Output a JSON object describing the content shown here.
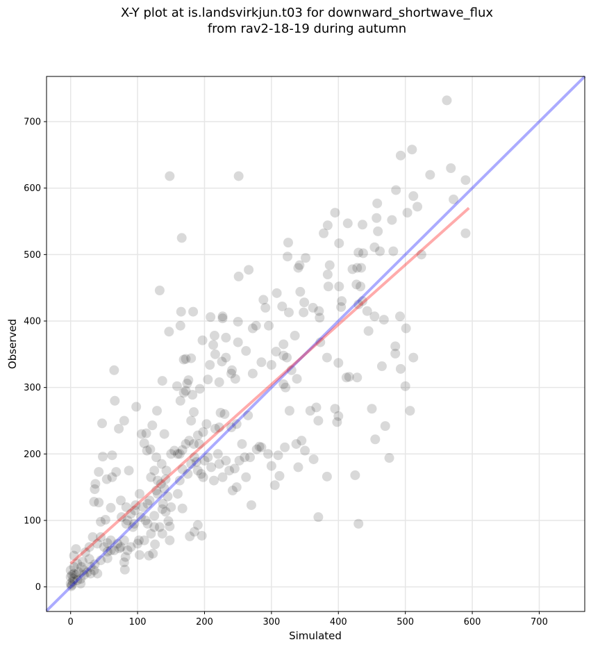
{
  "chart_data": {
    "type": "scatter",
    "title_line1": "X-Y plot at is.landsvirkjun.t03 for downward_shortwave_flux",
    "title_line2": "from rav2-18-19 during autumn",
    "xlabel": "Simulated",
    "ylabel": "Observed",
    "xlim": [
      -36,
      768
    ],
    "ylim": [
      -37,
      768
    ],
    "xticks": [
      "0",
      "100",
      "200",
      "300",
      "400",
      "500",
      "600",
      "700"
    ],
    "yticks": [
      "0",
      "100",
      "200",
      "300",
      "400",
      "500",
      "600",
      "700"
    ],
    "grid": true,
    "point_color": "#000000",
    "fit_line": {
      "color": "#ff0000",
      "from": [
        0,
        35
      ],
      "to": [
        595,
        570
      ]
    },
    "identity_line": {
      "color": "#0000ff"
    },
    "points": [
      [
        562,
        732
      ],
      [
        510,
        658
      ],
      [
        493,
        649
      ],
      [
        568,
        630
      ],
      [
        537,
        620
      ],
      [
        590,
        612
      ],
      [
        486,
        597
      ],
      [
        512,
        588
      ],
      [
        572,
        583
      ],
      [
        518,
        572
      ],
      [
        503,
        563
      ],
      [
        458,
        577
      ],
      [
        590,
        532
      ],
      [
        480,
        552
      ],
      [
        457,
        555
      ],
      [
        436,
        545
      ],
      [
        384,
        544
      ],
      [
        414,
        547
      ],
      [
        395,
        563
      ],
      [
        401,
        517
      ],
      [
        459,
        535
      ],
      [
        378,
        532
      ],
      [
        325,
        518
      ],
      [
        454,
        511
      ],
      [
        462,
        505
      ],
      [
        482,
        505
      ],
      [
        437,
        502
      ],
      [
        430,
        503
      ],
      [
        324,
        497
      ],
      [
        351,
        495
      ],
      [
        524,
        500
      ],
      [
        428,
        480
      ],
      [
        421,
        478
      ],
      [
        434,
        480
      ],
      [
        387,
        484
      ],
      [
        342,
        484
      ],
      [
        340,
        480
      ],
      [
        266,
        477
      ],
      [
        251,
        467
      ],
      [
        133,
        446
      ],
      [
        148,
        618
      ],
      [
        251,
        618
      ],
      [
        166,
        525
      ],
      [
        308,
        442
      ],
      [
        343,
        444
      ],
      [
        384,
        470
      ],
      [
        385,
        452
      ],
      [
        401,
        452
      ],
      [
        433,
        452
      ],
      [
        427,
        455
      ],
      [
        454,
        407
      ],
      [
        492,
        407
      ],
      [
        501,
        389
      ],
      [
        468,
        402
      ],
      [
        436,
        430
      ],
      [
        430,
        425
      ],
      [
        404,
        421
      ],
      [
        362,
        420
      ],
      [
        371,
        415
      ],
      [
        372,
        405
      ],
      [
        349,
        428
      ],
      [
        348,
        413
      ],
      [
        326,
        413
      ],
      [
        316,
        422
      ],
      [
        291,
        420
      ],
      [
        288,
        432
      ],
      [
        272,
        389
      ],
      [
        277,
        393
      ],
      [
        296,
        393
      ],
      [
        227,
        407
      ],
      [
        209,
        406
      ],
      [
        250,
        399
      ],
      [
        227,
        404
      ],
      [
        165,
        414
      ],
      [
        183,
        414
      ],
      [
        164,
        393
      ],
      [
        147,
        384
      ],
      [
        485,
        362
      ],
      [
        485,
        351
      ],
      [
        512,
        345
      ],
      [
        493,
        328
      ],
      [
        465,
        332
      ],
      [
        416,
        316
      ],
      [
        428,
        315
      ],
      [
        400,
        337
      ],
      [
        383,
        345
      ],
      [
        373,
        368
      ],
      [
        335,
        378
      ],
      [
        318,
        365
      ],
      [
        318,
        348
      ],
      [
        323,
        345
      ],
      [
        300,
        334
      ],
      [
        307,
        354
      ],
      [
        318,
        305
      ],
      [
        338,
        313
      ],
      [
        330,
        326
      ],
      [
        321,
        300
      ],
      [
        285,
        338
      ],
      [
        272,
        321
      ],
      [
        262,
        355
      ],
      [
        250,
        368
      ],
      [
        215,
        378
      ],
      [
        213,
        364
      ],
      [
        197,
        371
      ],
      [
        216,
        350
      ],
      [
        208,
        334
      ],
      [
        232,
        375
      ],
      [
        232,
        345
      ],
      [
        226,
        339
      ],
      [
        240,
        321
      ],
      [
        241,
        326
      ],
      [
        246,
        313
      ],
      [
        222,
        308
      ],
      [
        193,
        298
      ],
      [
        205,
        312
      ],
      [
        176,
        311
      ],
      [
        172,
        343
      ],
      [
        169,
        342
      ],
      [
        180,
        344
      ],
      [
        174,
        306
      ],
      [
        172,
        295
      ],
      [
        182,
        289
      ],
      [
        159,
        302
      ],
      [
        169,
        292
      ],
      [
        184,
        263
      ],
      [
        180,
        250
      ],
      [
        164,
        280
      ],
      [
        137,
        310
      ],
      [
        129,
        265
      ],
      [
        122,
        243
      ],
      [
        140,
        230
      ],
      [
        98,
        271
      ],
      [
        113,
        231
      ],
      [
        110,
        216
      ],
      [
        106,
        230
      ],
      [
        66,
        280
      ],
      [
        65,
        326
      ],
      [
        80,
        250
      ],
      [
        72,
        238
      ],
      [
        47,
        246
      ],
      [
        87,
        175
      ],
      [
        68,
        173
      ],
      [
        62,
        165
      ],
      [
        54,
        162
      ],
      [
        48,
        196
      ],
      [
        62,
        198
      ],
      [
        42,
        173
      ],
      [
        37,
        155
      ],
      [
        36,
        147
      ],
      [
        35,
        128
      ],
      [
        42,
        127
      ],
      [
        52,
        101
      ],
      [
        45,
        98
      ],
      [
        60,
        119
      ],
      [
        75,
        130
      ],
      [
        83,
        120
      ],
      [
        97,
        123
      ],
      [
        96,
        115
      ],
      [
        103,
        140
      ],
      [
        120,
        165
      ],
      [
        125,
        175
      ],
      [
        128,
        195
      ],
      [
        119,
        207
      ],
      [
        114,
        205
      ],
      [
        136,
        185
      ],
      [
        142,
        162
      ],
      [
        143,
        175
      ],
      [
        130,
        160
      ],
      [
        163,
        160
      ],
      [
        167,
        177
      ],
      [
        160,
        140
      ],
      [
        145,
        136
      ],
      [
        150,
        120
      ],
      [
        137,
        117
      ],
      [
        125,
        107
      ],
      [
        146,
        99
      ],
      [
        148,
        91
      ],
      [
        148,
        70
      ],
      [
        137,
        80
      ],
      [
        126,
        64
      ],
      [
        123,
        50
      ],
      [
        117,
        47
      ],
      [
        103,
        48
      ],
      [
        102,
        70
      ],
      [
        93,
        90
      ],
      [
        83,
        95
      ],
      [
        76,
        105
      ],
      [
        80,
        70
      ],
      [
        82,
        45
      ],
      [
        80,
        37
      ],
      [
        81,
        26
      ],
      [
        73,
        58
      ],
      [
        65,
        55
      ],
      [
        60,
        55
      ],
      [
        55,
        53
      ],
      [
        55,
        43
      ],
      [
        45,
        40
      ],
      [
        36,
        34
      ],
      [
        40,
        20
      ],
      [
        30,
        30
      ],
      [
        28,
        42
      ],
      [
        22,
        52
      ],
      [
        18,
        38
      ],
      [
        16,
        30
      ],
      [
        10,
        35
      ],
      [
        8,
        57
      ],
      [
        5,
        47
      ],
      [
        5,
        30
      ],
      [
        5,
        20
      ],
      [
        4,
        12
      ],
      [
        3,
        8
      ],
      [
        2,
        3
      ],
      [
        1,
        1
      ],
      [
        0,
        5
      ],
      [
        0,
        15
      ],
      [
        0,
        25
      ],
      [
        2,
        18
      ],
      [
        8,
        18
      ],
      [
        12,
        22
      ],
      [
        15,
        12
      ],
      [
        20,
        18
      ],
      [
        25,
        22
      ],
      [
        30,
        20
      ],
      [
        35,
        25
      ],
      [
        10,
        10
      ],
      [
        15,
        5
      ],
      [
        20,
        25
      ],
      [
        28,
        60
      ],
      [
        33,
        75
      ],
      [
        40,
        65
      ],
      [
        45,
        75
      ],
      [
        50,
        60
      ],
      [
        55,
        66
      ],
      [
        60,
        70
      ],
      [
        70,
        65
      ],
      [
        75,
        60
      ],
      [
        85,
        55
      ],
      [
        90,
        60
      ],
      [
        100,
        65
      ],
      [
        110,
        70
      ],
      [
        115,
        95
      ],
      [
        105,
        105
      ],
      [
        95,
        95
      ],
      [
        90,
        110
      ],
      [
        85,
        100
      ],
      [
        120,
        80
      ],
      [
        125,
        90
      ],
      [
        133,
        90
      ],
      [
        150,
        200
      ],
      [
        155,
        205
      ],
      [
        160,
        200
      ],
      [
        175,
        170
      ],
      [
        180,
        185
      ],
      [
        185,
        195
      ],
      [
        190,
        175
      ],
      [
        195,
        170
      ],
      [
        198,
        165
      ],
      [
        200,
        190
      ],
      [
        205,
        195
      ],
      [
        210,
        180
      ],
      [
        214,
        160
      ],
      [
        220,
        200
      ],
      [
        222,
        185
      ],
      [
        227,
        165
      ],
      [
        232,
        190
      ],
      [
        237,
        175
      ],
      [
        242,
        145
      ],
      [
        245,
        178
      ],
      [
        248,
        150
      ],
      [
        252,
        190
      ],
      [
        260,
        195
      ],
      [
        262,
        165
      ],
      [
        268,
        195
      ],
      [
        270,
        123
      ],
      [
        285,
        210
      ],
      [
        295,
        200
      ],
      [
        300,
        182
      ],
      [
        305,
        153
      ],
      [
        310,
        198
      ],
      [
        312,
        167
      ],
      [
        320,
        210
      ],
      [
        327,
        265
      ],
      [
        337,
        215
      ],
      [
        345,
        220
      ],
      [
        340,
        180
      ],
      [
        350,
        205
      ],
      [
        358,
        265
      ],
      [
        367,
        270
      ],
      [
        363,
        192
      ],
      [
        370,
        105
      ],
      [
        370,
        250
      ],
      [
        383,
        166
      ],
      [
        395,
        268
      ],
      [
        400,
        257
      ],
      [
        398,
        248
      ],
      [
        405,
        430
      ],
      [
        412,
        315
      ],
      [
        425,
        168
      ],
      [
        430,
        95
      ],
      [
        443,
        415
      ],
      [
        445,
        385
      ],
      [
        450,
        268
      ],
      [
        455,
        222
      ],
      [
        470,
        242
      ],
      [
        476,
        194
      ],
      [
        507,
        265
      ],
      [
        500,
        302
      ],
      [
        282,
        211
      ],
      [
        278,
        207
      ],
      [
        265,
        258
      ],
      [
        256,
        215
      ],
      [
        248,
        245
      ],
      [
        240,
        240
      ],
      [
        230,
        260
      ],
      [
        224,
        262
      ],
      [
        222,
        240
      ],
      [
        216,
        238
      ],
      [
        203,
        245
      ],
      [
        198,
        233
      ],
      [
        190,
        228
      ],
      [
        192,
        215
      ],
      [
        184,
        215
      ],
      [
        177,
        220
      ],
      [
        172,
        215
      ],
      [
        167,
        206
      ],
      [
        163,
        200
      ],
      [
        188,
        188
      ],
      [
        196,
        77
      ],
      [
        190,
        93
      ],
      [
        178,
        76
      ],
      [
        185,
        83
      ],
      [
        167,
        118
      ],
      [
        140,
        148
      ],
      [
        135,
        155
      ],
      [
        130,
        140
      ],
      [
        115,
        125
      ],
      [
        108,
        120
      ],
      [
        112,
        100
      ],
      [
        118,
        130
      ],
      [
        128,
        145
      ],
      [
        138,
        125
      ],
      [
        142,
        113
      ]
    ]
  }
}
